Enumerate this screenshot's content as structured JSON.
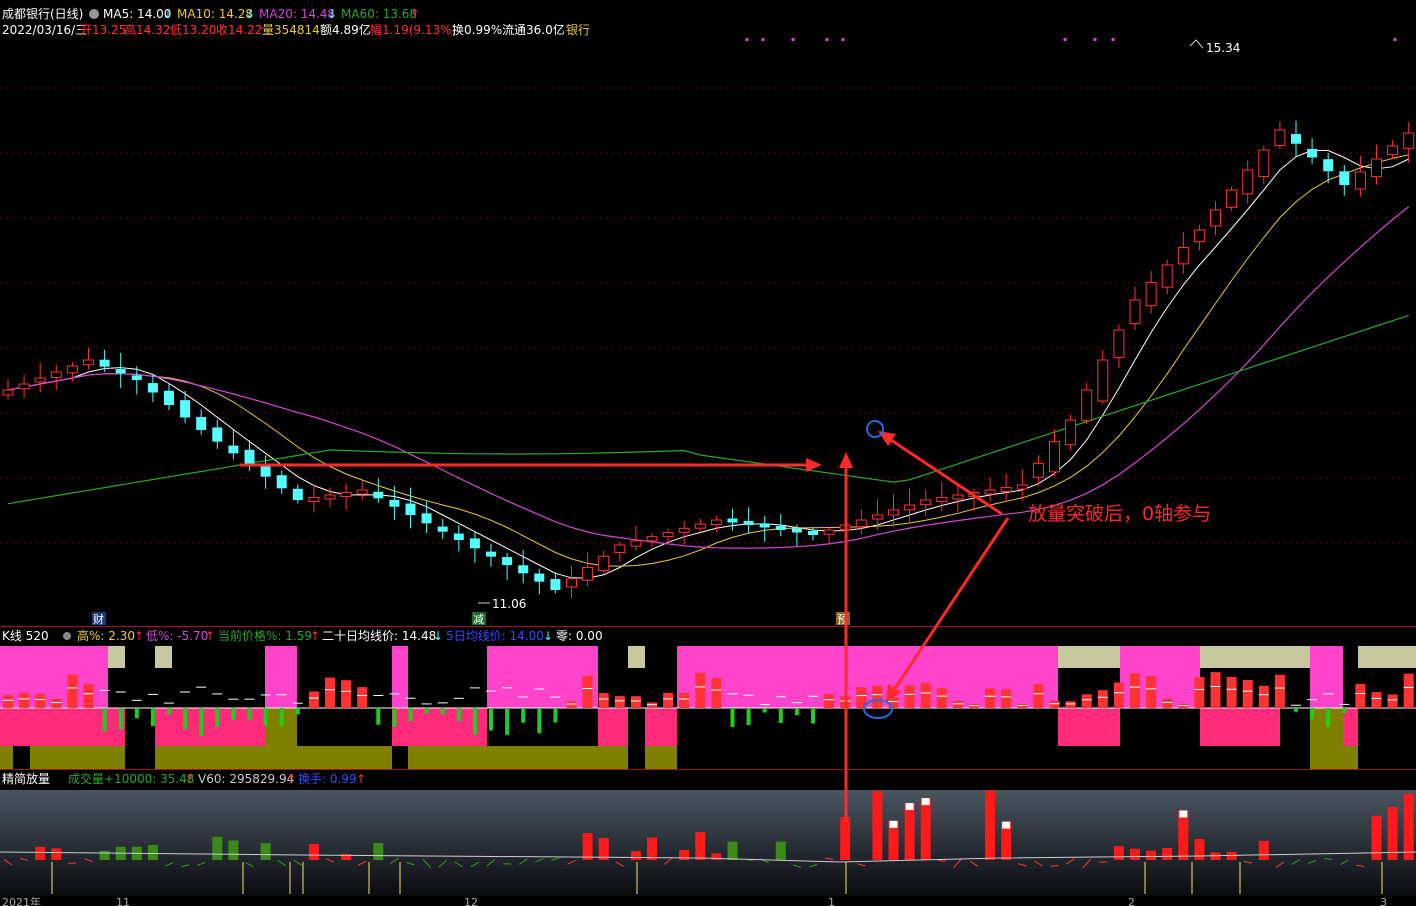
{
  "header": {
    "stock_name": "成都银行(日线)",
    "ma5": "MA5: 14.00",
    "ma10": "MA10: 14.28",
    "ma20": "MA20: 14.48",
    "ma60": "MA60: 13.68",
    "ma5_arrow": "↓",
    "ma10_arrow": "↓",
    "ma20_arrow": "↓",
    "ma60_arrow": "↑",
    "date": "2022/03/16/三",
    "open": "开13.25",
    "high": "高14.32",
    "low": "低13.20",
    "close": "收14.22",
    "volume": "量354814",
    "amount": "额4.89亿",
    "change": "幅1.19(9.13%)",
    "turnover": "换0.99%",
    "float_cap": "流通36.0亿",
    "industry": "银行"
  },
  "price_panel": {
    "max_label": "15.34",
    "min_label": "11.06",
    "marker_cai": "财",
    "marker_jian": "减",
    "marker_yu": "预",
    "annotation": "放量突破后，0轴参与"
  },
  "indicator_panel": {
    "name": "K线 520",
    "high_pct": "高%: 2.30",
    "low_pct": "低%: -5.70",
    "cur_pct": "当前价格%: 1.59",
    "ma20_price": "二十日均线价: 14.48",
    "ma5_price": "5日均线价: 14.00",
    "zero": "零: 0.00"
  },
  "volume_panel": {
    "name": "精简放量",
    "vol": "成交量+10000: 35.48",
    "v60": "V60: 295829.94",
    "turn": "换手: 0.99"
  },
  "x_axis": {
    "labels": [
      "2021年",
      "11",
      "12",
      "1",
      "2",
      "3"
    ]
  },
  "colors": {
    "up": "#ff3333",
    "down": "#54ffff",
    "ma5": "#ffffff",
    "ma10": "#e8c84a",
    "ma20": "#d24ad2",
    "ma60": "#2aa82a",
    "annotation": "#ff2a2a"
  }
}
